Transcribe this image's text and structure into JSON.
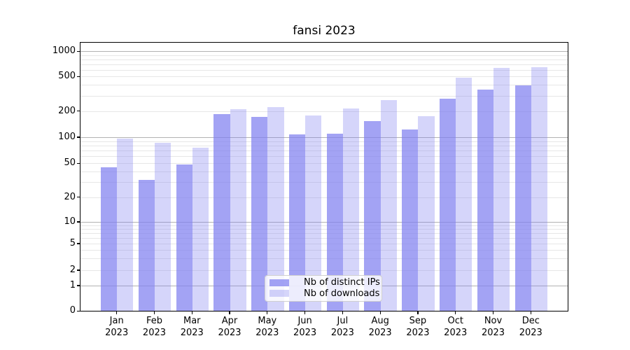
{
  "chart_data": {
    "type": "bar",
    "title": "fansi 2023",
    "scale": "symlog",
    "grid": true,
    "legend_position": "lower center",
    "categories": [
      "Jan",
      "Feb",
      "Mar",
      "Apr",
      "May",
      "Jun",
      "Jul",
      "Aug",
      "Sep",
      "Oct",
      "Nov",
      "Dec"
    ],
    "year": "2023",
    "series": [
      {
        "name": "Nb of distinct IPs",
        "color": "rgba(127,127,240,0.72)",
        "values": [
          45,
          32,
          49,
          187,
          173,
          108,
          110,
          156,
          123,
          280,
          360,
          400
        ]
      },
      {
        "name": "Nb of downloads",
        "color": "rgba(127,127,240,0.33)",
        "values": [
          97,
          87,
          77,
          214,
          224,
          178,
          216,
          271,
          175,
          493,
          635,
          648
        ]
      }
    ],
    "yticks": [
      "0",
      "1",
      "2",
      "5",
      "10",
      "20",
      "50",
      "100",
      "200",
      "500",
      "1000"
    ],
    "ylim": [
      0,
      1300
    ],
    "xlabel": "",
    "ylabel": ""
  },
  "colors": {
    "grid_major": "#b2b2b2",
    "grid_minor": "#e7e7e7",
    "axis": "#000000",
    "legend_border": "#cfcfcf"
  }
}
